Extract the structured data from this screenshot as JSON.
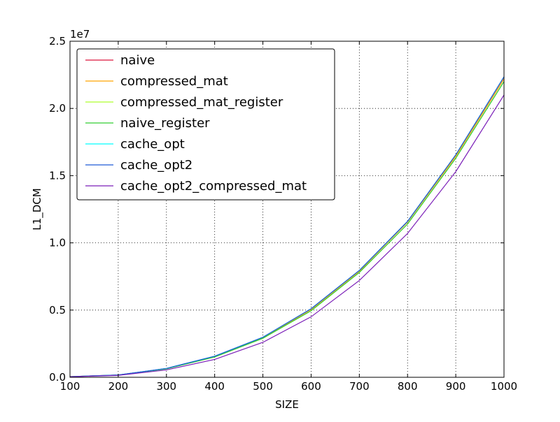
{
  "chart_data": {
    "type": "line",
    "xlabel": "SIZE",
    "ylabel": "L1_DCM",
    "exponent_label": "1e7",
    "xlim": [
      100,
      1000
    ],
    "ylim": [
      0.0,
      2.5
    ],
    "x_ticks": [
      100,
      200,
      300,
      400,
      500,
      600,
      700,
      800,
      900,
      1000
    ],
    "x_tick_labels": [
      "100",
      "200",
      "300",
      "400",
      "500",
      "600",
      "700",
      "800",
      "900",
      "1000"
    ],
    "y_ticks": [
      0.0,
      0.5,
      1.0,
      1.5,
      2.0,
      2.5
    ],
    "y_tick_labels": [
      "0.0",
      "0.5",
      "1.0",
      "1.5",
      "2.0",
      "2.5"
    ],
    "grid": true,
    "legend_position": "top-left",
    "x": [
      100,
      200,
      300,
      400,
      500,
      600,
      700,
      800,
      900,
      1000
    ],
    "series": [
      {
        "name": "naive",
        "color": "#dc143c",
        "values": [
          0.005,
          0.017,
          0.065,
          0.155,
          0.295,
          0.505,
          0.79,
          1.155,
          1.645,
          2.22
        ]
      },
      {
        "name": "compressed_mat",
        "color": "#ffa500",
        "values": [
          0.005,
          0.017,
          0.065,
          0.155,
          0.295,
          0.505,
          0.79,
          1.155,
          1.645,
          2.22
        ]
      },
      {
        "name": "compressed_mat_register",
        "color": "#adff2f",
        "values": [
          0.005,
          0.016,
          0.063,
          0.151,
          0.29,
          0.495,
          0.78,
          1.14,
          1.63,
          2.2
        ]
      },
      {
        "name": "naive_register",
        "color": "#32cd32",
        "values": [
          0.005,
          0.016,
          0.063,
          0.151,
          0.29,
          0.495,
          0.78,
          1.14,
          1.63,
          2.2
        ]
      },
      {
        "name": "cache_opt",
        "color": "#00ffff",
        "values": [
          0.005,
          0.017,
          0.066,
          0.157,
          0.298,
          0.51,
          0.795,
          1.16,
          1.655,
          2.235
        ]
      },
      {
        "name": "cache_opt2",
        "color": "#1e5bd6",
        "values": [
          0.005,
          0.017,
          0.066,
          0.157,
          0.298,
          0.51,
          0.795,
          1.16,
          1.655,
          2.235
        ]
      },
      {
        "name": "cache_opt2_compressed_mat",
        "color": "#7b1fb8",
        "values": [
          0.004,
          0.014,
          0.055,
          0.133,
          0.26,
          0.45,
          0.72,
          1.07,
          1.53,
          2.1
        ]
      }
    ]
  }
}
